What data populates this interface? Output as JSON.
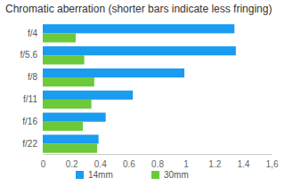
{
  "chart_data": {
    "type": "bar",
    "orientation": "horizontal",
    "title": "Chromatic aberration (shorter bars indicate less fringing)",
    "categories": [
      "f/4",
      "f/5.6",
      "f/8",
      "f/11",
      "f/16",
      "f/22"
    ],
    "series": [
      {
        "name": "14mm",
        "color": "#1a9cf0",
        "values": [
          1.34,
          1.35,
          0.99,
          0.63,
          0.44,
          0.39
        ]
      },
      {
        "name": "30mm",
        "color": "#6cc93a",
        "values": [
          0.23,
          0.29,
          0.36,
          0.34,
          0.28,
          0.38
        ]
      }
    ],
    "xlim": [
      0,
      1.6
    ],
    "xticks": [
      0,
      0.2,
      0.4,
      0.6,
      0.8,
      1,
      1.2,
      1.4,
      {
        "value": 1.6,
        "label": "1,6"
      }
    ],
    "grid": false,
    "legend": "bottom"
  }
}
